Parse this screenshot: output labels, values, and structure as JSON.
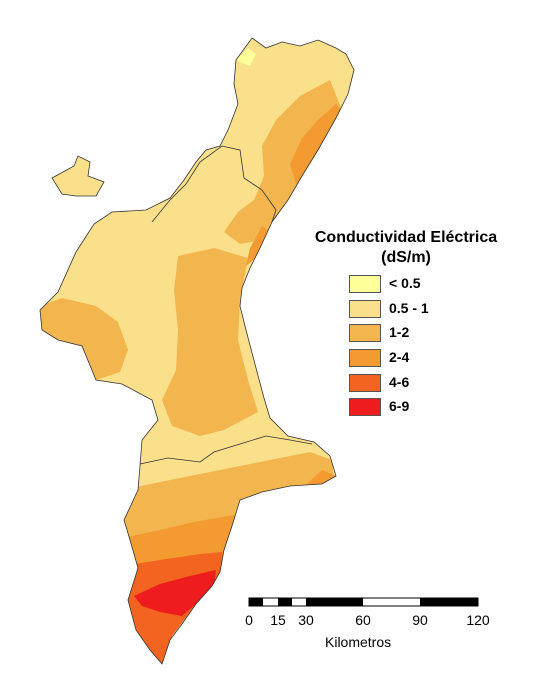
{
  "legend": {
    "title_line1": "Conductividad Eléctrica",
    "title_line2": "(dS/m)",
    "items": [
      {
        "label": "< 0.5",
        "color": "#ffff99"
      },
      {
        "label": "0.5 - 1",
        "color": "#fae08a"
      },
      {
        "label": "1-2",
        "color": "#f3b54e"
      },
      {
        "label": "2-4",
        "color": "#f39a31"
      },
      {
        "label": "4-6",
        "color": "#f26420"
      },
      {
        "label": "6-9",
        "color": "#ee1c1c"
      }
    ]
  },
  "scale_bar": {
    "ticks": [
      "0",
      "15",
      "30",
      "60",
      "90",
      "120"
    ],
    "unit": "Kilometros"
  }
}
